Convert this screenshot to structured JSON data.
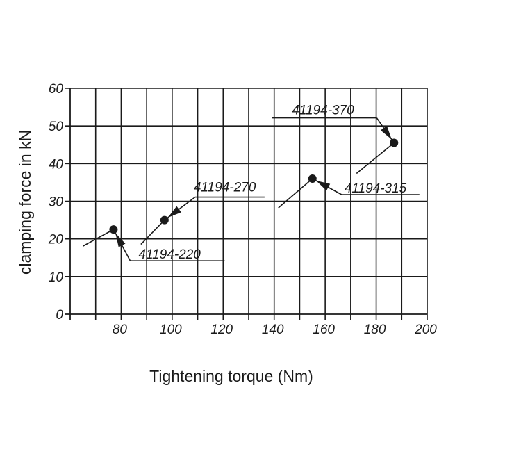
{
  "chart_data": {
    "type": "scatter",
    "title": "",
    "xlabel": "Tightening torque (Nm)",
    "ylabel": "clamping force in kN",
    "xlim": [
      60,
      200
    ],
    "ylim": [
      0,
      60
    ],
    "x_ticks": [
      "80",
      "100",
      "120",
      "140",
      "160",
      "180",
      "200"
    ],
    "y_ticks": [
      "0",
      "10",
      "20",
      "30",
      "40",
      "50",
      "60"
    ],
    "grid": true,
    "points": [
      {
        "label": "41194-220",
        "x": 77,
        "y": 22.5
      },
      {
        "label": "41194-270",
        "x": 97,
        "y": 25
      },
      {
        "label": "41194-315",
        "x": 155,
        "y": 36
      },
      {
        "label": "41194-370",
        "x": 187,
        "y": 45.5
      }
    ]
  }
}
